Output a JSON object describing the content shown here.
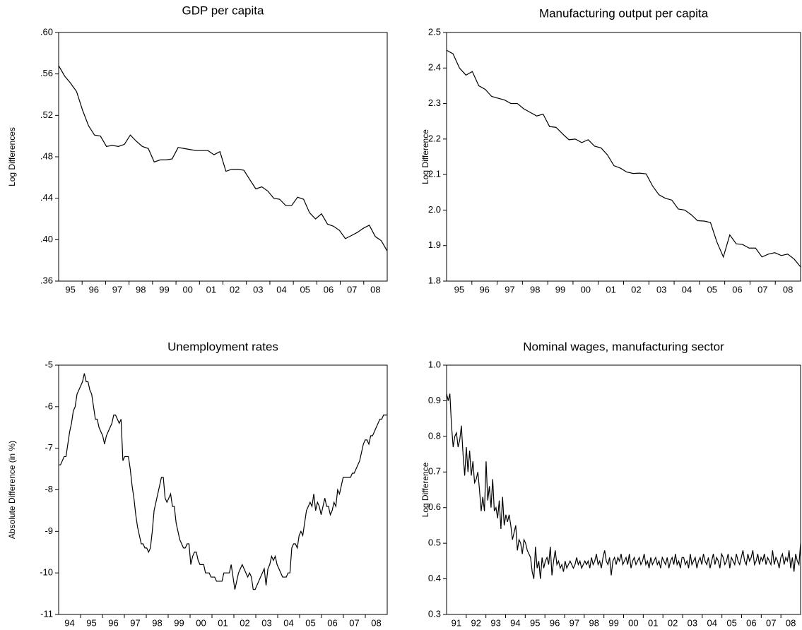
{
  "chart_data": [
    {
      "type": "line",
      "title": "GDP per capita",
      "y_label": "Log Differences",
      "color": "#000000",
      "categories": [
        "95",
        "96",
        "97",
        "98",
        "99",
        "00",
        "01",
        "02",
        "03",
        "04",
        "05",
        "06",
        "07",
        "08"
      ],
      "values": [
        [
          0.568,
          0.558,
          0.551,
          0.543
        ],
        [
          0.525,
          0.51,
          0.501,
          0.5
        ],
        [
          0.49,
          0.491,
          0.49,
          0.492
        ],
        [
          0.501,
          0.495,
          0.49,
          0.488
        ],
        [
          0.475,
          0.477,
          0.477,
          0.478
        ],
        [
          0.489,
          0.488,
          0.487,
          0.486
        ],
        [
          0.486,
          0.486,
          0.482,
          0.485
        ],
        [
          0.466,
          0.468,
          0.468,
          0.467
        ],
        [
          0.458,
          0.449,
          0.451,
          0.447
        ],
        [
          0.44,
          0.439,
          0.433,
          0.433
        ],
        [
          0.441,
          0.439,
          0.426,
          0.42
        ],
        [
          0.425,
          0.415,
          0.413,
          0.409
        ],
        [
          0.401,
          0.404,
          0.407,
          0.411
        ],
        [
          0.414,
          0.403,
          0.399,
          0.389
        ]
      ],
      "ylim": [
        0.36,
        0.6
      ],
      "yticks": [
        {
          "value": 0.36,
          "label": ".36"
        },
        {
          "value": 0.4,
          "label": ".40"
        },
        {
          "value": 0.44,
          "label": ".44"
        },
        {
          "value": 0.48,
          "label": ".48"
        },
        {
          "value": 0.52,
          "label": ".52"
        },
        {
          "value": 0.56,
          "label": ".56"
        },
        {
          "value": 0.6,
          "label": ".60"
        }
      ]
    },
    {
      "type": "line",
      "title": "Manufacturing output per capita",
      "y_label": "Log Difference",
      "color": "#000000",
      "categories": [
        "95",
        "96",
        "97",
        "98",
        "99",
        "00",
        "01",
        "02",
        "03",
        "04",
        "05",
        "06",
        "07",
        "08"
      ],
      "values": [
        [
          2.45,
          2.44,
          2.4,
          2.38
        ],
        [
          2.39,
          2.35,
          2.34,
          2.32
        ],
        [
          2.315,
          2.31,
          2.3,
          2.3
        ],
        [
          2.285,
          2.275,
          2.265,
          2.27
        ],
        [
          2.235,
          2.233,
          2.215,
          2.198
        ],
        [
          2.2,
          2.19,
          2.198,
          2.18
        ],
        [
          2.175,
          2.155,
          2.125,
          2.118
        ],
        [
          2.107,
          2.103,
          2.104,
          2.102
        ],
        [
          2.068,
          2.043,
          2.033,
          2.028
        ],
        [
          2.003,
          2.0,
          1.987,
          1.97
        ],
        [
          1.969,
          1.965,
          1.91,
          1.868
        ],
        [
          1.93,
          1.905,
          1.903,
          1.893
        ],
        [
          1.893,
          1.868,
          1.876,
          1.88
        ],
        [
          1.872,
          1.876,
          1.862,
          1.84
        ]
      ],
      "ylim": [
        1.8,
        2.5
      ],
      "yticks": [
        1.8,
        1.9,
        {
          "value": 2.0,
          "label": "2.0"
        },
        2.1,
        2.2,
        2.3,
        2.4,
        2.5
      ]
    },
    {
      "type": "line",
      "title": "Unemployment rates",
      "y_label": "Absolute Difference (in %)",
      "color": "#000000",
      "categories": [
        "94",
        "95",
        "96",
        "97",
        "98",
        "99",
        "00",
        "01",
        "02",
        "03",
        "04",
        "05",
        "06",
        "07",
        "08"
      ],
      "values": [
        [
          -7.4,
          -7.4,
          -7.3,
          -7.2,
          -7.2,
          -6.9,
          -6.6,
          -6.4,
          -6.1,
          -6.0,
          -5.7,
          -5.6
        ],
        [
          -5.5,
          -5.4,
          -5.2,
          -5.4,
          -5.4,
          -5.6,
          -5.7,
          -6.0,
          -6.3,
          -6.3,
          -6.5,
          -6.6
        ],
        [
          -6.7,
          -6.9,
          -6.7,
          -6.6,
          -6.5,
          -6.4,
          -6.2,
          -6.2,
          -6.3,
          -6.4,
          -6.3,
          -7.3
        ],
        [
          -7.2,
          -7.2,
          -7.2,
          -7.5,
          -7.9,
          -8.2,
          -8.6,
          -8.9,
          -9.1,
          -9.3,
          -9.3,
          -9.4
        ],
        [
          -9.4,
          -9.5,
          -9.4,
          -9.0,
          -8.5,
          -8.3,
          -8.1,
          -7.9,
          -7.7,
          -7.7,
          -8.2,
          -8.3
        ],
        [
          -8.2,
          -8.1,
          -8.4,
          -8.4,
          -8.8,
          -9.0,
          -9.2,
          -9.3,
          -9.4,
          -9.4,
          -9.3,
          -9.3
        ],
        [
          -9.8,
          -9.6,
          -9.5,
          -9.5,
          -9.7,
          -9.8,
          -9.8,
          -9.8,
          -10.0,
          -10.0,
          -10.0,
          -10.1
        ],
        [
          -10.1,
          -10.1,
          -10.2,
          -10.2,
          -10.2,
          -10.2,
          -10.0,
          -10.0,
          -10.0,
          -10.0,
          -9.8,
          -10.1
        ],
        [
          -10.4,
          -10.2,
          -10.0,
          -9.9,
          -9.8,
          -9.9,
          -10.0,
          -10.1,
          -10.0,
          -10.1,
          -10.4,
          -10.4
        ],
        [
          -10.3,
          -10.2,
          -10.1,
          -10.0,
          -9.9,
          -10.3,
          -9.9,
          -9.8,
          -9.6,
          -9.7,
          -9.6,
          -9.8
        ],
        [
          -9.9,
          -10.0,
          -10.1,
          -10.1,
          -10.1,
          -10.0,
          -10.0,
          -9.4,
          -9.3,
          -9.3,
          -9.4,
          -9.1
        ],
        [
          -9.0,
          -9.1,
          -8.8,
          -8.5,
          -8.4,
          -8.3,
          -8.4,
          -8.1,
          -8.5,
          -8.3,
          -8.4,
          -8.6
        ],
        [
          -8.4,
          -8.2,
          -8.4,
          -8.4,
          -8.6,
          -8.5,
          -8.3,
          -8.4,
          -8.0,
          -8.1,
          -7.9,
          -7.7
        ],
        [
          -7.7,
          -7.7,
          -7.7,
          -7.7,
          -7.6,
          -7.6,
          -7.5,
          -7.4,
          -7.3,
          -7.1,
          -6.9,
          -6.8
        ],
        [
          -6.8,
          -6.9,
          -6.7,
          -6.7,
          -6.6,
          -6.5,
          -6.4,
          -6.3,
          -6.3,
          -6.2,
          -6.2,
          -6.2
        ]
      ],
      "ylim": [
        -11,
        -5
      ],
      "yticks": [
        -11,
        -10,
        -9,
        -8,
        -7,
        -6,
        -5
      ]
    },
    {
      "type": "line",
      "title": "Nominal wages, manufacturing sector",
      "y_label": "Log Difference",
      "color": "#000000",
      "categories": [
        "91",
        "92",
        "93",
        "94",
        "95",
        "96",
        "97",
        "98",
        "99",
        "00",
        "01",
        "02",
        "03",
        "04",
        "05",
        "06",
        "07",
        "08"
      ],
      "values": [
        [
          0.92,
          0.9,
          0.92,
          0.83,
          0.77,
          0.8,
          0.81,
          0.77,
          0.79,
          0.83,
          0.75,
          0.69
        ],
        [
          0.77,
          0.7,
          0.76,
          0.69,
          0.73,
          0.67,
          0.68,
          0.7,
          0.65,
          0.59,
          0.63,
          0.59
        ],
        [
          0.73,
          0.62,
          0.66,
          0.6,
          0.68,
          0.59,
          0.6,
          0.57,
          0.62,
          0.54,
          0.63,
          0.55
        ],
        [
          0.58,
          0.56,
          0.58,
          0.55,
          0.51,
          0.53,
          0.55,
          0.48,
          0.51,
          0.5,
          0.47,
          0.51
        ],
        [
          0.5,
          0.48,
          0.47,
          0.46,
          0.42,
          0.4,
          0.49,
          0.43,
          0.45,
          0.4,
          0.46,
          0.43
        ],
        [
          0.45,
          0.46,
          0.44,
          0.49,
          0.41,
          0.45,
          0.48,
          0.44,
          0.45,
          0.43,
          0.44,
          0.42
        ],
        [
          0.45,
          0.43,
          0.44,
          0.45,
          0.44,
          0.43,
          0.44,
          0.46,
          0.44,
          0.45,
          0.43,
          0.44
        ],
        [
          0.45,
          0.44,
          0.45,
          0.43,
          0.46,
          0.44,
          0.45,
          0.47,
          0.44,
          0.45,
          0.43,
          0.46
        ],
        [
          0.48,
          0.45,
          0.44,
          0.46,
          0.41,
          0.45,
          0.46,
          0.44,
          0.46,
          0.45,
          0.47,
          0.44
        ],
        [
          0.45,
          0.46,
          0.44,
          0.47,
          0.43,
          0.45,
          0.46,
          0.44,
          0.45,
          0.46,
          0.44,
          0.45
        ],
        [
          0.47,
          0.44,
          0.45,
          0.43,
          0.46,
          0.44,
          0.45,
          0.46,
          0.44,
          0.45,
          0.43,
          0.46
        ],
        [
          0.45,
          0.44,
          0.46,
          0.43,
          0.45,
          0.46,
          0.44,
          0.47,
          0.44,
          0.45,
          0.43,
          0.46
        ],
        [
          0.46,
          0.44,
          0.45,
          0.43,
          0.47,
          0.44,
          0.45,
          0.46,
          0.43,
          0.45,
          0.46,
          0.44
        ],
        [
          0.47,
          0.45,
          0.44,
          0.46,
          0.43,
          0.45,
          0.47,
          0.44,
          0.46,
          0.45,
          0.43,
          0.47
        ],
        [
          0.46,
          0.44,
          0.45,
          0.47,
          0.43,
          0.46,
          0.45,
          0.44,
          0.47,
          0.45,
          0.44,
          0.46
        ],
        [
          0.48,
          0.45,
          0.44,
          0.47,
          0.45,
          0.46,
          0.48,
          0.44,
          0.45,
          0.47,
          0.44,
          0.46
        ],
        [
          0.45,
          0.47,
          0.44,
          0.46,
          0.45,
          0.44,
          0.48,
          0.44,
          0.46,
          0.45,
          0.43,
          0.46
        ],
        [
          0.47,
          0.44,
          0.46,
          0.45,
          0.48,
          0.43,
          0.46,
          0.42,
          0.47,
          0.45,
          0.44,
          0.5
        ]
      ],
      "ylim": [
        0.3,
        1.0
      ],
      "yticks": [
        0.3,
        0.4,
        0.5,
        0.6,
        0.7,
        0.8,
        0.9,
        {
          "value": 1.0,
          "label": "1.0"
        }
      ]
    }
  ]
}
